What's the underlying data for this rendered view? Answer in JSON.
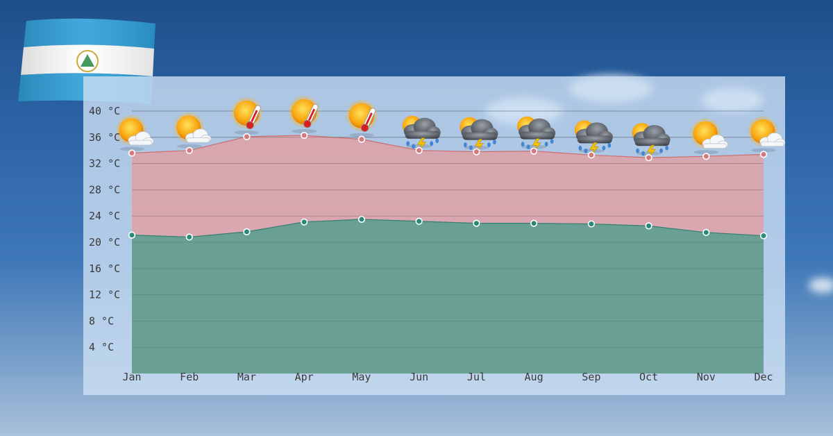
{
  "background": {
    "sky_top": "#1f4f8a",
    "sky_bottom": "#a9c1da"
  },
  "flag": {
    "country": "Nicaragua",
    "stripe_blue": "#2e9fd8",
    "stripe_white": "#ffffff"
  },
  "chart_data": {
    "type": "area",
    "categories": [
      "Jan",
      "Feb",
      "Mar",
      "Apr",
      "May",
      "Jun",
      "Jul",
      "Aug",
      "Sep",
      "Oct",
      "Nov",
      "Dec"
    ],
    "series": [
      {
        "key": "high",
        "values": [
          33.6,
          34.0,
          36.1,
          36.3,
          35.7,
          34.0,
          33.8,
          33.9,
          33.3,
          32.9,
          33.1,
          33.4
        ],
        "color": "#e89a9a",
        "marker": "#d47a7a"
      },
      {
        "key": "low",
        "values": [
          21.1,
          20.8,
          21.6,
          23.1,
          23.5,
          23.2,
          22.9,
          22.9,
          22.8,
          22.5,
          21.5,
          21.0
        ],
        "color": "#5a9e90",
        "marker": "#2a8a7a"
      }
    ],
    "y_ticks": [
      "4 °C",
      "8 °C",
      "12 °C",
      "16 °C",
      "20 °C",
      "24 °C",
      "28 °C",
      "32 °C",
      "36 °C",
      "40 °C"
    ],
    "ylim": [
      0,
      40
    ],
    "grid": true,
    "weather_icons": [
      "sun-cloud-icon",
      "sun-cloud-icon",
      "hot-sun-icon",
      "hot-sun-icon",
      "hot-sun-icon",
      "thunderstorm-icon",
      "thunderstorm-icon",
      "thunderstorm-icon",
      "thunderstorm-icon",
      "thunderstorm-icon",
      "sun-cloud-icon",
      "sun-cloud-icon"
    ]
  }
}
